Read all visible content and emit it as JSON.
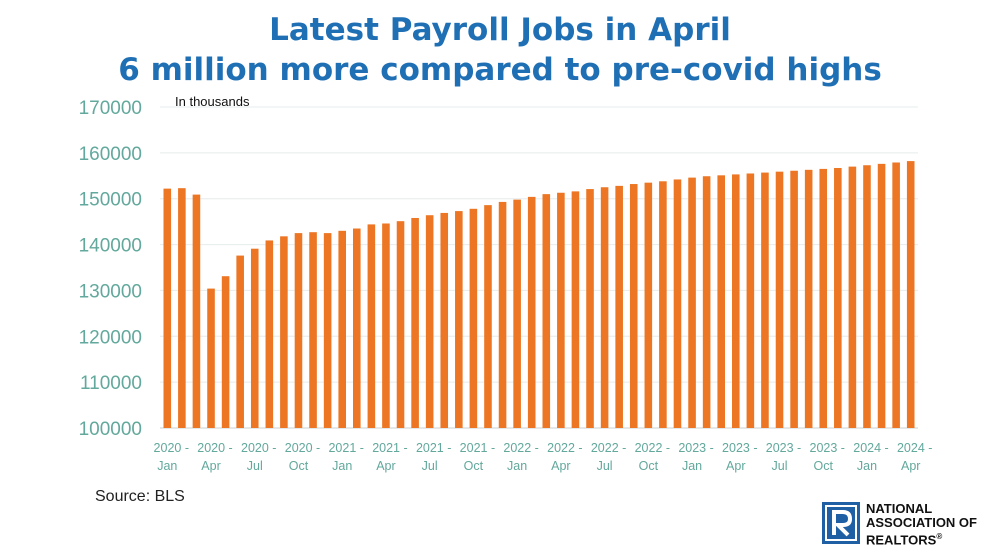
{
  "header": {
    "title_line1": "Latest Payroll Jobs in April",
    "title_line2": "6 million more compared to pre-covid highs"
  },
  "footer": {
    "source": "Source: BLS"
  },
  "logo": {
    "line1": "NATIONAL",
    "line2": "ASSOCIATION OF",
    "line3": "REALTORS",
    "mark": "®",
    "letter": "R"
  },
  "colors": {
    "bar": "#ec7623",
    "title": "#1f6fb5",
    "axis_text": "#62a89c",
    "grid": "#e6ecec",
    "logo": "#1f5fa3"
  },
  "chart_data": {
    "type": "bar",
    "unit_label": "In thousands",
    "ylim": [
      100000,
      170000
    ],
    "yticks": [
      "100000",
      "110000",
      "120000",
      "130000",
      "140000",
      "150000",
      "160000",
      "170000"
    ],
    "grid": true,
    "x_tick_labels": [
      {
        "index": 0,
        "top": "2020 -",
        "bottom": "Jan"
      },
      {
        "index": 3,
        "top": "2020 -",
        "bottom": "Apr"
      },
      {
        "index": 6,
        "top": "2020 -",
        "bottom": "Jul"
      },
      {
        "index": 9,
        "top": "2020 -",
        "bottom": "Oct"
      },
      {
        "index": 12,
        "top": "2021 -",
        "bottom": "Jan"
      },
      {
        "index": 15,
        "top": "2021 -",
        "bottom": "Apr"
      },
      {
        "index": 18,
        "top": "2021 -",
        "bottom": "Jul"
      },
      {
        "index": 21,
        "top": "2021 -",
        "bottom": "Oct"
      },
      {
        "index": 24,
        "top": "2022 -",
        "bottom": "Jan"
      },
      {
        "index": 27,
        "top": "2022 -",
        "bottom": "Apr"
      },
      {
        "index": 30,
        "top": "2022 -",
        "bottom": "Jul"
      },
      {
        "index": 33,
        "top": "2022 -",
        "bottom": "Oct"
      },
      {
        "index": 36,
        "top": "2023 -",
        "bottom": "Jan"
      },
      {
        "index": 39,
        "top": "2023 -",
        "bottom": "Apr"
      },
      {
        "index": 42,
        "top": "2023 -",
        "bottom": "Jul"
      },
      {
        "index": 45,
        "top": "2023 -",
        "bottom": "Oct"
      },
      {
        "index": 48,
        "top": "2024 -",
        "bottom": "Jan"
      },
      {
        "index": 51,
        "top": "2024 -",
        "bottom": "Apr"
      }
    ],
    "categories": [
      "2020-Jan",
      "2020-Feb",
      "2020-Mar",
      "2020-Apr",
      "2020-May",
      "2020-Jun",
      "2020-Jul",
      "2020-Aug",
      "2020-Sep",
      "2020-Oct",
      "2020-Nov",
      "2020-Dec",
      "2021-Jan",
      "2021-Feb",
      "2021-Mar",
      "2021-Apr",
      "2021-May",
      "2021-Jun",
      "2021-Jul",
      "2021-Aug",
      "2021-Sep",
      "2021-Oct",
      "2021-Nov",
      "2021-Dec",
      "2022-Jan",
      "2022-Feb",
      "2022-Mar",
      "2022-Apr",
      "2022-May",
      "2022-Jun",
      "2022-Jul",
      "2022-Aug",
      "2022-Sep",
      "2022-Oct",
      "2022-Nov",
      "2022-Dec",
      "2023-Jan",
      "2023-Feb",
      "2023-Mar",
      "2023-Apr",
      "2023-May",
      "2023-Jun",
      "2023-Jul",
      "2023-Aug",
      "2023-Sep",
      "2023-Oct",
      "2023-Nov",
      "2023-Dec",
      "2024-Jan",
      "2024-Feb",
      "2024-Mar",
      "2024-Apr"
    ],
    "values": [
      152200,
      152300,
      150900,
      130400,
      133100,
      137600,
      139100,
      140900,
      141800,
      142500,
      142700,
      142500,
      143000,
      143500,
      144400,
      144600,
      145100,
      145800,
      146400,
      146900,
      147300,
      147800,
      148600,
      149300,
      149800,
      150400,
      151000,
      151300,
      151600,
      152100,
      152500,
      152800,
      153200,
      153500,
      153800,
      154200,
      154600,
      154900,
      155100,
      155300,
      155500,
      155700,
      155900,
      156100,
      156300,
      156500,
      156700,
      157000,
      157300,
      157600,
      157900,
      158200
    ]
  }
}
